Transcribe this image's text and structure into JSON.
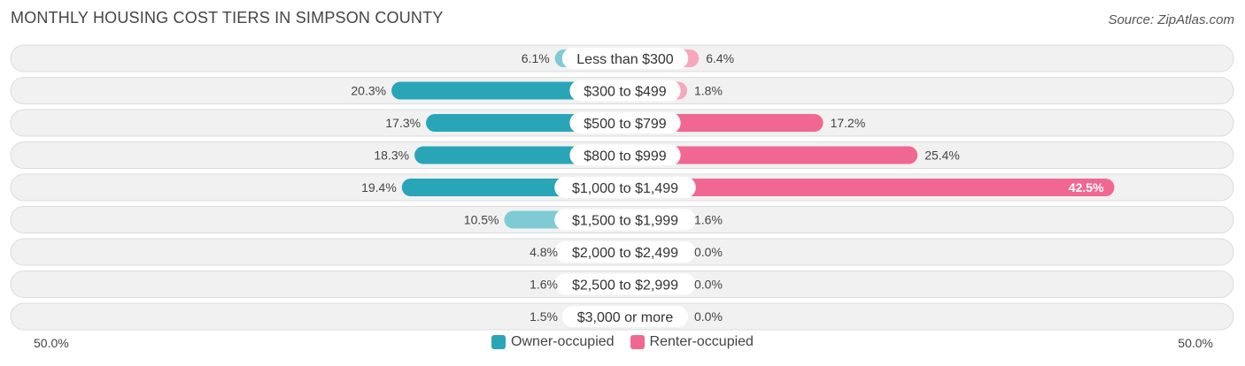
{
  "header": {
    "title": "MONTHLY HOUSING COST TIERS IN SIMPSON COUNTY",
    "source": "Source: ZipAtlas.com"
  },
  "colors": {
    "owner_strong": "#29a5b8",
    "owner_light": "#7ecbd4",
    "renter_strong": "#f06892",
    "renter_light": "#f6a7bf",
    "row_bg": "#f1f1f1",
    "row_border": "#dcdcdc"
  },
  "axis": {
    "left_label": "50.0%",
    "right_label": "50.0%"
  },
  "legend": [
    {
      "label": "Owner-occupied",
      "color": "#29a5b8"
    },
    {
      "label": "Renter-occupied",
      "color": "#f06892"
    }
  ],
  "chart_data": {
    "type": "bar",
    "title": "MONTHLY HOUSING COST TIERS IN SIMPSON COUNTY",
    "orientation": "horizontal-diverging",
    "range_percent": [
      -50,
      50
    ],
    "categories": [
      "Less than $300",
      "$300 to $499",
      "$500 to $799",
      "$800 to $999",
      "$1,000 to $1,499",
      "$1,500 to $1,999",
      "$2,000 to $2,499",
      "$2,500 to $2,999",
      "$3,000 or more"
    ],
    "series": [
      {
        "name": "Owner-occupied",
        "values": [
          6.1,
          20.3,
          17.3,
          18.3,
          19.4,
          10.5,
          4.8,
          1.6,
          1.5
        ],
        "labels": [
          "6.1%",
          "20.3%",
          "17.3%",
          "18.3%",
          "19.4%",
          "10.5%",
          "4.8%",
          "1.6%",
          "1.5%"
        ]
      },
      {
        "name": "Renter-occupied",
        "values": [
          6.4,
          1.8,
          17.2,
          25.4,
          42.5,
          1.6,
          0.0,
          0.0,
          0.0
        ],
        "labels": [
          "6.4%",
          "1.8%",
          "17.2%",
          "25.4%",
          "42.5%",
          "1.6%",
          "0.0%",
          "0.0%",
          "0.0%"
        ]
      }
    ],
    "legend_position": "bottom-center",
    "grid": false
  }
}
